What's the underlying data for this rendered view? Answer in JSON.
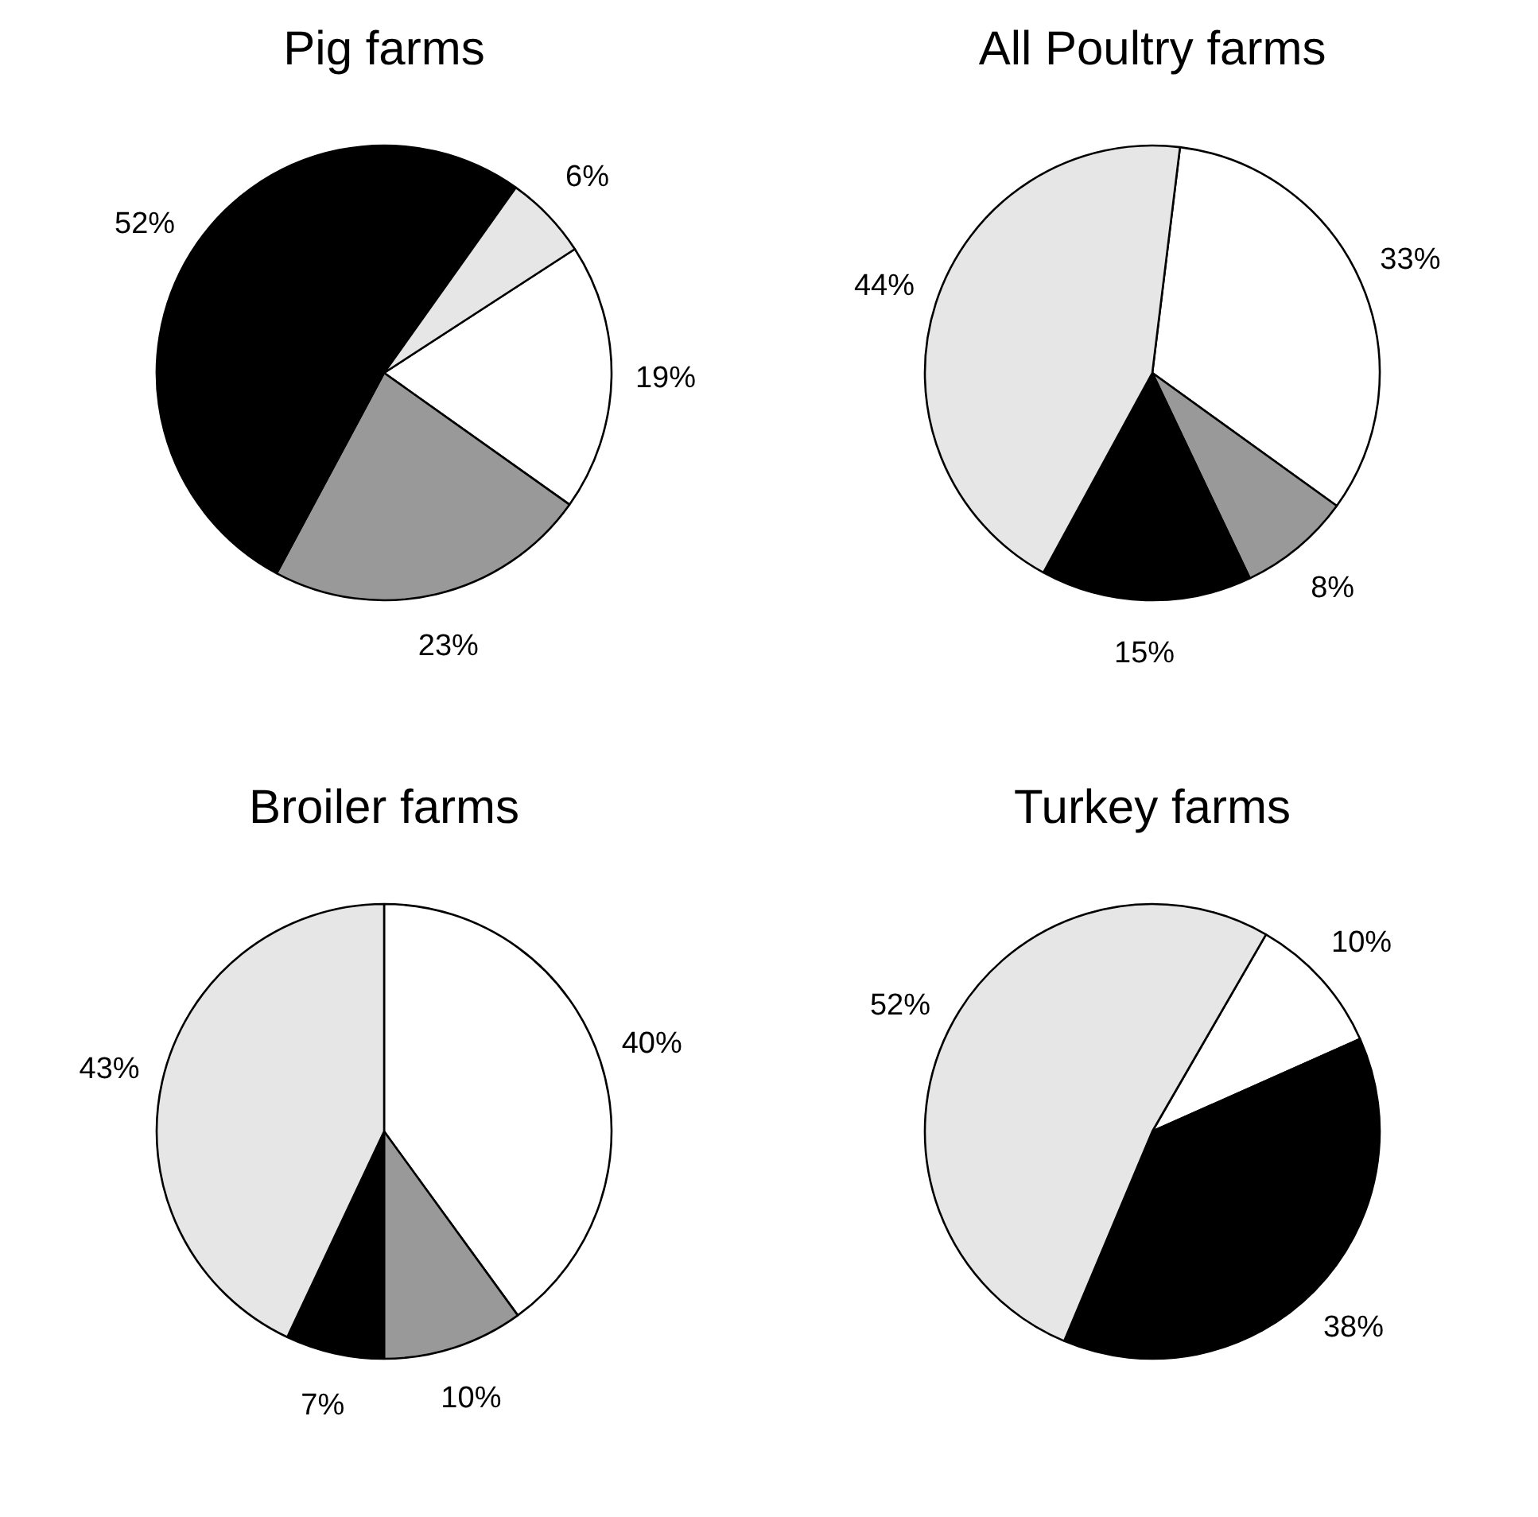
{
  "chart_data": [
    {
      "type": "pie",
      "title": "Pig farms",
      "categories": [
        null,
        null,
        null,
        null
      ],
      "values": [
        19,
        23,
        52,
        6
      ],
      "colors": [
        "#ffffff",
        "#999999",
        "#000000",
        "#e6e6e6"
      ],
      "value_labels": [
        "19%",
        "23%",
        "52%",
        "6%"
      ]
    },
    {
      "type": "pie",
      "title": "All Poultry farms",
      "categories": [
        null,
        null,
        null,
        null
      ],
      "values": [
        33,
        8,
        15,
        44
      ],
      "colors": [
        "#ffffff",
        "#999999",
        "#000000",
        "#e6e6e6"
      ],
      "value_labels": [
        "33%",
        "8%",
        "15%",
        "44%"
      ]
    },
    {
      "type": "pie",
      "title": "Broiler farms",
      "categories": [
        null,
        null,
        null,
        null
      ],
      "values": [
        40,
        10,
        7,
        43
      ],
      "colors": [
        "#ffffff",
        "#999999",
        "#000000",
        "#e6e6e6"
      ],
      "value_labels": [
        "40%",
        "10%",
        "7%",
        "43%"
      ]
    },
    {
      "type": "pie",
      "title": "Turkey farms",
      "categories": [
        null,
        null,
        null
      ],
      "values": [
        10,
        38,
        52
      ],
      "colors": [
        "#ffffff",
        "#000000",
        "#e6e6e6"
      ],
      "value_labels": [
        "10%",
        "38%",
        "52%"
      ]
    }
  ]
}
